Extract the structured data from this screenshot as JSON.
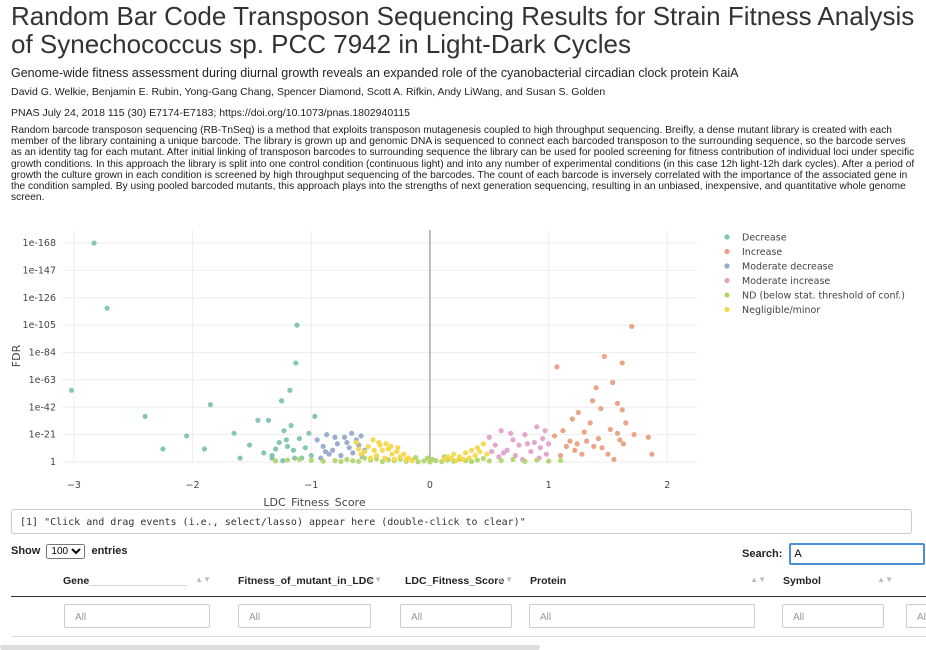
{
  "page": {
    "title": "Random Bar Code Transposon Sequencing Results for Strain Fitness Analysis of Synechococcus sp. PCC 7942 in Light-Dark Cycles",
    "subtitle": "Genome-wide fitness assessment during diurnal growth reveals an expanded role of the cyanobacterial circadian clock protein KaiA",
    "authors": "David G. Welkie, Benjamin E. Rubin, Yong-Gang Chang, Spencer Diamond, Scott A. Rifkin, Andy LiWang, and Susan S. Golden",
    "citation": "PNAS July 24, 2018 115 (30) E7174-E7183; https://doi.org/10.1073/pnas.1802940115",
    "abstract": "Random barcode transposon sequencing (RB-TnSeq) is a method that exploits transposon mutagenesis coupled to high throughput sequencing. Breifly, a dense mutant library is created with each member of the library containing a unique barcode. The library is grown up and genomic DNA is sequenced to connect each barcoded transposon to the surrounding sequence, so the barcode serves as an identity tag for each mutant. After initial linking of transposon barcodes to surrounding sequence the library can be used for pooled screening for fitness contribution of individual loci under specific growth conditions. In this approach the library is split into one control condition (continuous light) and into any number of experimental conditions (in this case 12h light-12h dark cycles). After a period of growth the culture grown in each condition is screened by high throughput sequencing of the barcodes. The count of each barcode is inversely correlated with the importance of the associated gene in the condition sampled. By using pooled barcoded mutants, this approach plays into the strengths of next generation sequencing, resulting in an unbiased, inexpensive, and quantitative whole genome screen."
  },
  "console": {
    "text": "[1] \"Click and drag events (i.e., select/lasso) appear here (double-click to clear)\""
  },
  "table": {
    "show_label": "Show",
    "entries_value": "100",
    "entries_label": "entries",
    "search_label": "Search:",
    "search_value": "A",
    "columns": [
      "Gene",
      "Fitness_of_mutant_in_LDC",
      "LDC_Fitness_Score",
      "Protein",
      "Symbol"
    ],
    "filter_placeholder": "All"
  },
  "colors": {
    "Decrease": "#7fc3b0",
    "Increase": "#e8a07e",
    "Moderate decrease": "#98a9cb",
    "Moderate increase": "#e3a0cc",
    "ND (below stat. threshold of conf.)": "#b1d66c",
    "Negligible/minor": "#f5d84a"
  },
  "chart_data": {
    "type": "scatter",
    "xlabel": "LDC_Fitness_Score",
    "ylabel": "FDR",
    "xlim": [
      -3.1,
      2.25
    ],
    "xticks": [
      -3,
      -2,
      -1,
      0,
      1,
      2
    ],
    "ylim_neglog10": [
      0,
      178
    ],
    "y_scale": "log (reversed, shown as -log10 FDR)",
    "yticks": [
      "1",
      "1e-21",
      "1e-42",
      "1e-63",
      "1e-84",
      "1e-105",
      "1e-126",
      "1e-147",
      "1e-168"
    ],
    "legend_position": "right",
    "legend": [
      "Decrease",
      "Increase",
      "Moderate decrease",
      "Moderate increase",
      "ND (below stat. threshold of conf.)",
      "Negligible/minor"
    ],
    "series": [
      {
        "name": "Decrease",
        "points": [
          [
            -2.83,
            168
          ],
          [
            -2.72,
            118
          ],
          [
            -3.02,
            55
          ],
          [
            -2.4,
            35
          ],
          [
            -2.25,
            10
          ],
          [
            -2.05,
            20
          ],
          [
            -1.9,
            10
          ],
          [
            -1.85,
            44
          ],
          [
            -1.65,
            22
          ],
          [
            -1.6,
            3
          ],
          [
            -1.52,
            13
          ],
          [
            -1.45,
            32
          ],
          [
            -1.36,
            32
          ],
          [
            -1.3,
            10
          ],
          [
            -1.23,
            24
          ],
          [
            -1.2,
            12
          ],
          [
            -1.12,
            105
          ],
          [
            -1.13,
            76
          ],
          [
            -1.18,
            55
          ],
          [
            -1.25,
            47
          ],
          [
            -1.17,
            28
          ],
          [
            -1.1,
            18
          ],
          [
            -1.05,
            11
          ],
          [
            -1.0,
            5
          ],
          [
            -0.97,
            35
          ],
          [
            -1.33,
            5
          ],
          [
            -1.4,
            7
          ],
          [
            -1.27,
            15
          ],
          [
            -1.15,
            9
          ],
          [
            -1.08,
            3
          ],
          [
            -1.21,
            17
          ],
          [
            -1.02,
            22
          ],
          [
            -1.33,
            3
          ],
          [
            -1.24,
            1
          ],
          [
            -1.14,
            3
          ]
        ]
      },
      {
        "name": "Increase",
        "points": [
          [
            1.7,
            104
          ],
          [
            1.47,
            81
          ],
          [
            1.62,
            76
          ],
          [
            1.07,
            73
          ],
          [
            1.4,
            57
          ],
          [
            1.54,
            61
          ],
          [
            1.37,
            47
          ],
          [
            1.58,
            45
          ],
          [
            1.2,
            33
          ],
          [
            1.25,
            38
          ],
          [
            1.44,
            41
          ],
          [
            1.62,
            40
          ],
          [
            1.3,
            23
          ],
          [
            1.32,
            16
          ],
          [
            1.45,
            11
          ],
          [
            1.5,
            6
          ],
          [
            1.52,
            25
          ],
          [
            1.6,
            17
          ],
          [
            1.65,
            30
          ],
          [
            1.72,
            21
          ],
          [
            1.84,
            19
          ],
          [
            1.87,
            6
          ],
          [
            1.18,
            16
          ],
          [
            1.12,
            24
          ],
          [
            1.15,
            12
          ],
          [
            1.22,
            9
          ],
          [
            1.28,
            6
          ],
          [
            1.38,
            12
          ],
          [
            1.42,
            18
          ],
          [
            1.58,
            22
          ],
          [
            1.1,
            5
          ],
          [
            1.24,
            14
          ],
          [
            1.35,
            30
          ],
          [
            1.55,
            2
          ],
          [
            1.63,
            14
          ],
          [
            1.05,
            20
          ]
        ]
      },
      {
        "name": "Moderate decrease",
        "points": [
          [
            -0.95,
            17
          ],
          [
            -0.9,
            12
          ],
          [
            -0.87,
            21
          ],
          [
            -0.82,
            9
          ],
          [
            -0.78,
            14
          ],
          [
            -0.75,
            5
          ],
          [
            -0.72,
            19
          ],
          [
            -0.68,
            11
          ],
          [
            -0.65,
            7
          ],
          [
            -0.62,
            17
          ],
          [
            -0.6,
            13
          ],
          [
            -0.57,
            4
          ],
          [
            -0.55,
            9
          ],
          [
            -0.92,
            3
          ],
          [
            -0.85,
            6
          ],
          [
            -0.8,
            19
          ],
          [
            -0.7,
            15
          ],
          [
            -0.66,
            22
          ],
          [
            -0.58,
            20
          ],
          [
            -0.88,
            8
          ]
        ]
      },
      {
        "name": "Moderate increase",
        "points": [
          [
            0.5,
            19
          ],
          [
            0.55,
            13
          ],
          [
            0.6,
            24
          ],
          [
            0.65,
            9
          ],
          [
            0.7,
            17
          ],
          [
            0.72,
            5
          ],
          [
            0.75,
            13
          ],
          [
            0.8,
            21
          ],
          [
            0.85,
            8
          ],
          [
            0.88,
            15
          ],
          [
            0.9,
            27
          ],
          [
            0.93,
            11
          ],
          [
            0.95,
            18
          ],
          [
            0.98,
            6
          ],
          [
            1.0,
            14
          ],
          [
            0.62,
            7
          ],
          [
            0.68,
            22
          ],
          [
            0.82,
            14
          ],
          [
            0.58,
            4
          ],
          [
            0.78,
            2
          ],
          [
            0.92,
            3
          ],
          [
            0.97,
            24
          ],
          [
            0.52,
            8
          ]
        ]
      },
      {
        "name": "ND (below stat. threshold of conf.)",
        "points": [
          [
            -0.8,
            1
          ],
          [
            -0.7,
            2
          ],
          [
            -0.6,
            0.5
          ],
          [
            -0.5,
            1.5
          ],
          [
            -0.4,
            0.3
          ],
          [
            -0.3,
            1
          ],
          [
            -0.2,
            0.5
          ],
          [
            -0.1,
            0.2
          ],
          [
            0.0,
            0.1
          ],
          [
            0.1,
            0.3
          ],
          [
            0.2,
            0.6
          ],
          [
            0.3,
            1
          ],
          [
            0.4,
            1.5
          ],
          [
            0.5,
            0.8
          ],
          [
            0.6,
            1.2
          ],
          [
            0.7,
            2
          ],
          [
            -0.45,
            2.5
          ],
          [
            -0.35,
            1.8
          ],
          [
            -0.25,
            2.2
          ],
          [
            -0.15,
            1.6
          ],
          [
            -0.05,
            0.8
          ],
          [
            0.05,
            1.1
          ],
          [
            0.15,
            1.5
          ],
          [
            0.25,
            2.3
          ],
          [
            0.35,
            0.4
          ],
          [
            0.45,
            2.7
          ],
          [
            -0.55,
            3
          ],
          [
            -0.65,
            1
          ],
          [
            -0.75,
            0.4
          ],
          [
            -0.9,
            0.6
          ],
          [
            -1.0,
            1.2
          ],
          [
            -1.1,
            2
          ],
          [
            -1.2,
            1.5
          ],
          [
            -1.3,
            0.8
          ],
          [
            0.8,
            0.5
          ],
          [
            0.9,
            1.4
          ],
          [
            1.0,
            0.7
          ],
          [
            1.1,
            1.1
          ],
          [
            -0.02,
            3
          ],
          [
            0.02,
            2
          ],
          [
            0.12,
            4
          ],
          [
            -0.12,
            3.5
          ]
        ]
      },
      {
        "name": "Negligible/minor",
        "points": [
          [
            -0.62,
            15
          ],
          [
            -0.55,
            8
          ],
          [
            -0.52,
            12
          ],
          [
            -0.48,
            17
          ],
          [
            -0.45,
            5
          ],
          [
            -0.42,
            13
          ],
          [
            -0.4,
            9
          ],
          [
            -0.38,
            3
          ],
          [
            -0.35,
            10
          ],
          [
            -0.32,
            6
          ],
          [
            -0.3,
            2
          ],
          [
            -0.28,
            8
          ],
          [
            -0.25,
            4
          ],
          [
            -0.22,
            6
          ],
          [
            -0.2,
            2
          ],
          [
            -0.18,
            3
          ],
          [
            -0.15,
            1
          ],
          [
            0.12,
            2
          ],
          [
            0.15,
            4
          ],
          [
            0.18,
            3
          ],
          [
            0.2,
            6
          ],
          [
            0.25,
            4
          ],
          [
            0.3,
            7
          ],
          [
            0.35,
            9
          ],
          [
            0.38,
            5
          ],
          [
            0.4,
            11
          ],
          [
            0.42,
            8
          ],
          [
            0.45,
            14
          ],
          [
            -0.5,
            3
          ],
          [
            -0.47,
            9
          ],
          [
            -0.43,
            15
          ],
          [
            -0.37,
            14
          ],
          [
            -0.33,
            12
          ],
          [
            -0.27,
            11
          ],
          [
            0.28,
            2
          ],
          [
            0.33,
            3
          ],
          [
            0.48,
            6
          ],
          [
            -0.58,
            6
          ],
          [
            -0.6,
            10
          ],
          [
            0.22,
            1
          ]
        ]
      }
    ]
  }
}
